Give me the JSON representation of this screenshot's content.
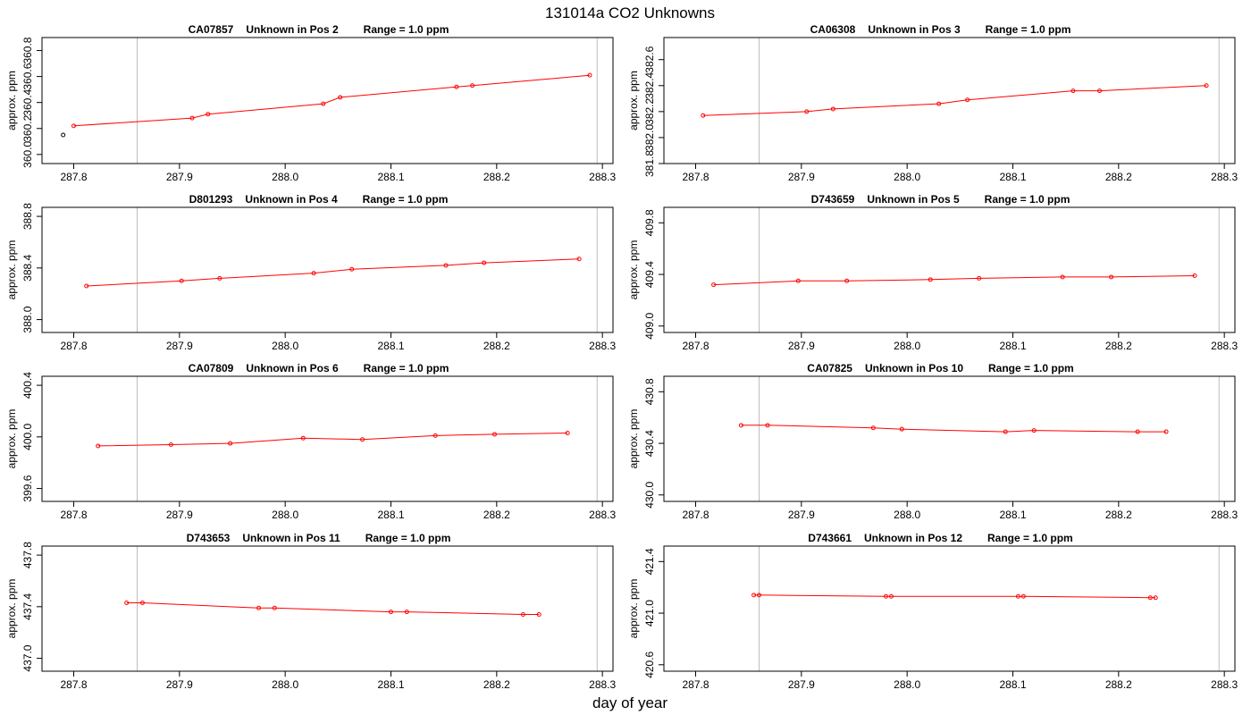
{
  "page": {
    "title": "131014a  CO2 Unknowns",
    "xlabel": "day of year"
  },
  "style": {
    "series_color": "#ff0000",
    "first_point_color": "#000000",
    "vline_color": "#bebebe",
    "frame_color": "#000000"
  },
  "chart_data": [
    {
      "type": "line",
      "title_parts": [
        "CA07857",
        "Unknown in Pos 2",
        "Range = 1.0 ppm"
      ],
      "xlabel": "",
      "ylabel": "approx. ppm",
      "xlim": [
        287.77,
        288.31
      ],
      "ylim": [
        359.93,
        360.9
      ],
      "xticks": [
        287.8,
        287.9,
        288.0,
        288.1,
        288.2,
        288.3
      ],
      "xtick_labels": [
        "287.8",
        "287.9",
        "288.0",
        "288.1",
        "288.2",
        "288.3"
      ],
      "yticks": [
        360.0,
        360.2,
        360.4,
        360.6,
        360.8
      ],
      "ytick_labels": [
        "360.0",
        "360.2",
        "360.4",
        "360.6",
        "360.8"
      ],
      "vlines": [
        287.86,
        288.295
      ],
      "points": [
        {
          "x": 287.79,
          "y": 360.15,
          "style": "black"
        },
        {
          "x": 287.8,
          "y": 360.22,
          "style": "red"
        },
        {
          "x": 287.912,
          "y": 360.28,
          "style": "red"
        },
        {
          "x": 287.927,
          "y": 360.31,
          "style": "red"
        },
        {
          "x": 288.036,
          "y": 360.39,
          "style": "red"
        },
        {
          "x": 288.052,
          "y": 360.44,
          "style": "red"
        },
        {
          "x": 288.162,
          "y": 360.52,
          "style": "red"
        },
        {
          "x": 288.177,
          "y": 360.53,
          "style": "red"
        },
        {
          "x": 288.288,
          "y": 360.61,
          "style": "red"
        }
      ]
    },
    {
      "type": "line",
      "title_parts": [
        "CA06308",
        "Unknown in Pos 3",
        "Range = 1.0 ppm"
      ],
      "xlabel": "",
      "ylabel": "approx. ppm",
      "xlim": [
        287.77,
        288.31
      ],
      "ylim": [
        381.8,
        382.77
      ],
      "xticks": [
        287.8,
        287.9,
        288.0,
        288.1,
        288.2,
        288.3
      ],
      "xtick_labels": [
        "287.8",
        "287.9",
        "288.0",
        "288.1",
        "288.2",
        "288.3"
      ],
      "yticks": [
        381.8,
        382.0,
        382.2,
        382.4,
        382.6
      ],
      "ytick_labels": [
        "381.8",
        "382.0",
        "382.2",
        "382.4",
        "382.6"
      ],
      "vlines": [
        287.86,
        288.295
      ],
      "points": [
        {
          "x": 287.807,
          "y": 382.17,
          "style": "red"
        },
        {
          "x": 287.905,
          "y": 382.2,
          "style": "red"
        },
        {
          "x": 287.93,
          "y": 382.22,
          "style": "red"
        },
        {
          "x": 288.03,
          "y": 382.26,
          "style": "red"
        },
        {
          "x": 288.057,
          "y": 382.29,
          "style": "red"
        },
        {
          "x": 288.157,
          "y": 382.36,
          "style": "red"
        },
        {
          "x": 288.182,
          "y": 382.36,
          "style": "red"
        },
        {
          "x": 288.283,
          "y": 382.4,
          "style": "red"
        }
      ]
    },
    {
      "type": "line",
      "title_parts": [
        "D801293",
        "Unknown in Pos 4",
        "Range = 1.0 ppm"
      ],
      "xlabel": "",
      "ylabel": "approx. ppm",
      "xlim": [
        287.77,
        288.31
      ],
      "ylim": [
        387.9,
        388.87
      ],
      "xticks": [
        287.8,
        287.9,
        288.0,
        288.1,
        288.2,
        288.3
      ],
      "xtick_labels": [
        "287.8",
        "287.9",
        "288.0",
        "288.1",
        "288.2",
        "288.3"
      ],
      "yticks": [
        388.0,
        388.4,
        388.8
      ],
      "ytick_labels": [
        "388.0",
        "388.4",
        "388.8"
      ],
      "vlines": [
        287.86,
        288.295
      ],
      "points": [
        {
          "x": 287.812,
          "y": 388.26,
          "style": "red"
        },
        {
          "x": 287.902,
          "y": 388.3,
          "style": "red"
        },
        {
          "x": 287.938,
          "y": 388.32,
          "style": "red"
        },
        {
          "x": 288.027,
          "y": 388.36,
          "style": "red"
        },
        {
          "x": 288.063,
          "y": 388.39,
          "style": "red"
        },
        {
          "x": 288.152,
          "y": 388.42,
          "style": "red"
        },
        {
          "x": 288.188,
          "y": 388.44,
          "style": "red"
        },
        {
          "x": 288.278,
          "y": 388.47,
          "style": "red"
        }
      ]
    },
    {
      "type": "line",
      "title_parts": [
        "D743659",
        "Unknown in Pos 5",
        "Range = 1.0 ppm"
      ],
      "xlabel": "",
      "ylabel": "approx. ppm",
      "xlim": [
        287.77,
        288.31
      ],
      "ylim": [
        408.95,
        409.92
      ],
      "xticks": [
        287.8,
        287.9,
        288.0,
        288.1,
        288.2,
        288.3
      ],
      "xtick_labels": [
        "287.8",
        "287.9",
        "288.0",
        "288.1",
        "288.2",
        "288.3"
      ],
      "yticks": [
        409.0,
        409.4,
        409.8
      ],
      "ytick_labels": [
        "409.0",
        "409.4",
        "409.8"
      ],
      "vlines": [
        287.86,
        288.295
      ],
      "points": [
        {
          "x": 287.817,
          "y": 409.32,
          "style": "red"
        },
        {
          "x": 287.897,
          "y": 409.35,
          "style": "red"
        },
        {
          "x": 287.943,
          "y": 409.35,
          "style": "red"
        },
        {
          "x": 288.022,
          "y": 409.36,
          "style": "red"
        },
        {
          "x": 288.068,
          "y": 409.37,
          "style": "red"
        },
        {
          "x": 288.147,
          "y": 409.38,
          "style": "red"
        },
        {
          "x": 288.193,
          "y": 409.38,
          "style": "red"
        },
        {
          "x": 288.272,
          "y": 409.39,
          "style": "red"
        }
      ]
    },
    {
      "type": "line",
      "title_parts": [
        "CA07809",
        "Unknown in Pos 6",
        "Range = 1.0 ppm"
      ],
      "xlabel": "",
      "ylabel": "approx. ppm",
      "xlim": [
        287.77,
        288.31
      ],
      "ylim": [
        399.5,
        400.47
      ],
      "xticks": [
        287.8,
        287.9,
        288.0,
        288.1,
        288.2,
        288.3
      ],
      "xtick_labels": [
        "287.8",
        "287.9",
        "288.0",
        "288.1",
        "288.2",
        "288.3"
      ],
      "yticks": [
        399.6,
        400.0,
        400.4
      ],
      "ytick_labels": [
        "399.6",
        "400.0",
        "400.4"
      ],
      "vlines": [
        287.86,
        288.295
      ],
      "points": [
        {
          "x": 287.823,
          "y": 399.93,
          "style": "red"
        },
        {
          "x": 287.892,
          "y": 399.94,
          "style": "red"
        },
        {
          "x": 287.948,
          "y": 399.95,
          "style": "red"
        },
        {
          "x": 288.017,
          "y": 399.99,
          "style": "red"
        },
        {
          "x": 288.073,
          "y": 399.98,
          "style": "red"
        },
        {
          "x": 288.142,
          "y": 400.01,
          "style": "red"
        },
        {
          "x": 288.198,
          "y": 400.02,
          "style": "red"
        },
        {
          "x": 288.267,
          "y": 400.03,
          "style": "red"
        }
      ]
    },
    {
      "type": "line",
      "title_parts": [
        "CA07825",
        "Unknown in Pos 10",
        "Range = 1.0 ppm"
      ],
      "xlabel": "",
      "ylabel": "approx. ppm",
      "xlim": [
        287.77,
        288.31
      ],
      "ylim": [
        429.95,
        430.92
      ],
      "xticks": [
        287.8,
        287.9,
        288.0,
        288.1,
        288.2,
        288.3
      ],
      "xtick_labels": [
        "287.8",
        "287.9",
        "288.0",
        "288.1",
        "288.2",
        "288.3"
      ],
      "yticks": [
        430.0,
        430.4,
        430.8
      ],
      "ytick_labels": [
        "430.0",
        "430.4",
        "430.8"
      ],
      "vlines": [
        287.86,
        288.295
      ],
      "points": [
        {
          "x": 287.843,
          "y": 430.54,
          "style": "red"
        },
        {
          "x": 287.868,
          "y": 430.54,
          "style": "red"
        },
        {
          "x": 287.968,
          "y": 430.52,
          "style": "red"
        },
        {
          "x": 287.995,
          "y": 430.51,
          "style": "red"
        },
        {
          "x": 288.093,
          "y": 430.49,
          "style": "red"
        },
        {
          "x": 288.12,
          "y": 430.5,
          "style": "red"
        },
        {
          "x": 288.218,
          "y": 430.49,
          "style": "red"
        },
        {
          "x": 288.245,
          "y": 430.49,
          "style": "red"
        }
      ]
    },
    {
      "type": "line",
      "title_parts": [
        "D743653",
        "Unknown in Pos 11",
        "Range = 1.0 ppm"
      ],
      "xlabel": "",
      "ylabel": "approx. ppm",
      "xlim": [
        287.77,
        288.31
      ],
      "ylim": [
        436.9,
        437.87
      ],
      "xticks": [
        287.8,
        287.9,
        288.0,
        288.1,
        288.2,
        288.3
      ],
      "xtick_labels": [
        "287.8",
        "287.9",
        "288.0",
        "288.1",
        "288.2",
        "288.3"
      ],
      "yticks": [
        437.0,
        437.4,
        437.8
      ],
      "ytick_labels": [
        "437.0",
        "437.4",
        "437.8"
      ],
      "vlines": [
        287.86,
        288.295
      ],
      "points": [
        {
          "x": 287.85,
          "y": 437.43,
          "style": "red"
        },
        {
          "x": 287.865,
          "y": 437.43,
          "style": "red"
        },
        {
          "x": 287.975,
          "y": 437.39,
          "style": "red"
        },
        {
          "x": 287.99,
          "y": 437.39,
          "style": "red"
        },
        {
          "x": 288.1,
          "y": 437.36,
          "style": "red"
        },
        {
          "x": 288.115,
          "y": 437.36,
          "style": "red"
        },
        {
          "x": 288.225,
          "y": 437.34,
          "style": "red"
        },
        {
          "x": 288.24,
          "y": 437.34,
          "style": "red"
        }
      ]
    },
    {
      "type": "line",
      "title_parts": [
        "D743661",
        "Unknown in Pos 12",
        "Range = 1.0 ppm"
      ],
      "xlabel": "",
      "ylabel": "approx. ppm",
      "xlim": [
        287.77,
        288.31
      ],
      "ylim": [
        420.55,
        421.52
      ],
      "xticks": [
        287.8,
        287.9,
        288.0,
        288.1,
        288.2,
        288.3
      ],
      "xtick_labels": [
        "287.8",
        "287.9",
        "288.0",
        "288.1",
        "288.2",
        "288.3"
      ],
      "yticks": [
        420.6,
        421.0,
        421.4
      ],
      "ytick_labels": [
        "420.6",
        "421.0",
        "421.4"
      ],
      "vlines": [
        287.86,
        288.295
      ],
      "points": [
        {
          "x": 287.855,
          "y": 421.14,
          "style": "red"
        },
        {
          "x": 287.86,
          "y": 421.14,
          "style": "red"
        },
        {
          "x": 287.98,
          "y": 421.13,
          "style": "red"
        },
        {
          "x": 287.985,
          "y": 421.13,
          "style": "red"
        },
        {
          "x": 288.105,
          "y": 421.13,
          "style": "red"
        },
        {
          "x": 288.11,
          "y": 421.13,
          "style": "red"
        },
        {
          "x": 288.23,
          "y": 421.12,
          "style": "red"
        },
        {
          "x": 288.235,
          "y": 421.12,
          "style": "red"
        }
      ]
    }
  ]
}
